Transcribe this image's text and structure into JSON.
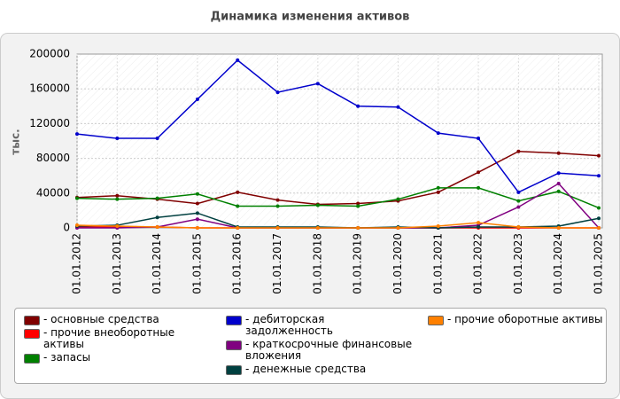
{
  "chart_data": {
    "type": "line",
    "title": "Динамика изменения активов",
    "y_label": "тыс.",
    "categories": [
      "01.01.2012",
      "01.01.2013",
      "01.01.2014",
      "01.01.2015",
      "01.01.2016",
      "01.01.2017",
      "01.01.2018",
      "01.01.2019",
      "01.01.2020",
      "01.01.2021",
      "01.01.2022",
      "01.01.2023",
      "01.01.2024",
      "01.01.2025"
    ],
    "ylim": [
      0,
      200000
    ],
    "yticks": [
      0,
      40000,
      80000,
      120000,
      160000,
      200000
    ],
    "grid": true,
    "series": [
      {
        "name": "- основные средства",
        "color": "#800000",
        "values": [
          35000,
          37000,
          33000,
          28000,
          41000,
          32000,
          27000,
          28000,
          31000,
          41000,
          64000,
          88000,
          86000,
          83000
        ]
      },
      {
        "name": "- прочие внеоборотные активы",
        "color": "#ff0000",
        "values": [
          1000,
          1000,
          1000,
          0,
          0,
          0,
          0,
          0,
          0,
          0,
          0,
          0,
          0,
          0
        ]
      },
      {
        "name": "- запасы",
        "color": "#008000",
        "values": [
          34000,
          33000,
          34000,
          39000,
          25000,
          25000,
          26000,
          25000,
          33000,
          46000,
          46000,
          31000,
          42000,
          23000
        ]
      },
      {
        "name": "- дебиторская задолженность",
        "color": "#0000cc",
        "values": [
          108000,
          103000,
          103000,
          148000,
          193000,
          156000,
          166000,
          140000,
          139000,
          109000,
          103000,
          41000,
          63000,
          60000
        ]
      },
      {
        "name": "- краткосрочные финансовые вложения",
        "color": "#800080",
        "values": [
          0,
          0,
          1000,
          10000,
          0,
          0,
          0,
          0,
          0,
          0,
          3000,
          24000,
          51000,
          0
        ]
      },
      {
        "name": "- денежные средства",
        "color": "#004040",
        "values": [
          2000,
          3000,
          12000,
          17000,
          1000,
          1000,
          1000,
          0,
          1000,
          0,
          1000,
          1000,
          2000,
          11000
        ]
      },
      {
        "name": "- прочие оборотные активы",
        "color": "#ff8000",
        "values": [
          3000,
          2000,
          1000,
          0,
          0,
          0,
          0,
          0,
          0,
          2000,
          6000,
          1000,
          0,
          0
        ]
      }
    ]
  }
}
